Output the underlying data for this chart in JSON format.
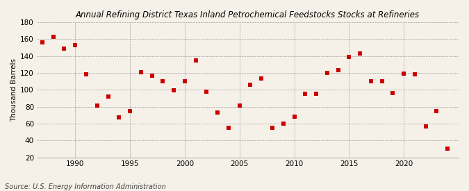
{
  "title": "Annual Refining District Texas Inland Petrochemical Feedstocks Stocks at Refineries",
  "ylabel": "Thousand Barrels",
  "source": "Source: U.S. Energy Information Administration",
  "background_color": "#f5f0e8",
  "marker_color": "#cc0000",
  "marker_size": 18,
  "xlim": [
    1986.5,
    2025
  ],
  "ylim": [
    20,
    180
  ],
  "yticks": [
    20,
    40,
    60,
    80,
    100,
    120,
    140,
    160,
    180
  ],
  "xticks": [
    1990,
    1995,
    2000,
    2005,
    2010,
    2015,
    2020
  ],
  "years": [
    1987,
    1988,
    1989,
    1990,
    1991,
    1992,
    1993,
    1994,
    1995,
    1996,
    1997,
    1998,
    1999,
    2000,
    2001,
    2002,
    2003,
    2004,
    2005,
    2006,
    2007,
    2008,
    2009,
    2010,
    2011,
    2012,
    2013,
    2014,
    2015,
    2016,
    2017,
    2018,
    2019,
    2020,
    2021,
    2022,
    2023,
    2024
  ],
  "values": [
    156,
    163,
    149,
    153,
    118,
    81,
    92,
    67,
    75,
    121,
    117,
    110,
    99,
    110,
    135,
    98,
    73,
    55,
    81,
    106,
    113,
    55,
    60,
    68,
    95,
    95,
    120,
    123,
    139,
    143,
    110,
    110,
    96,
    119,
    118,
    57,
    75,
    30
  ]
}
